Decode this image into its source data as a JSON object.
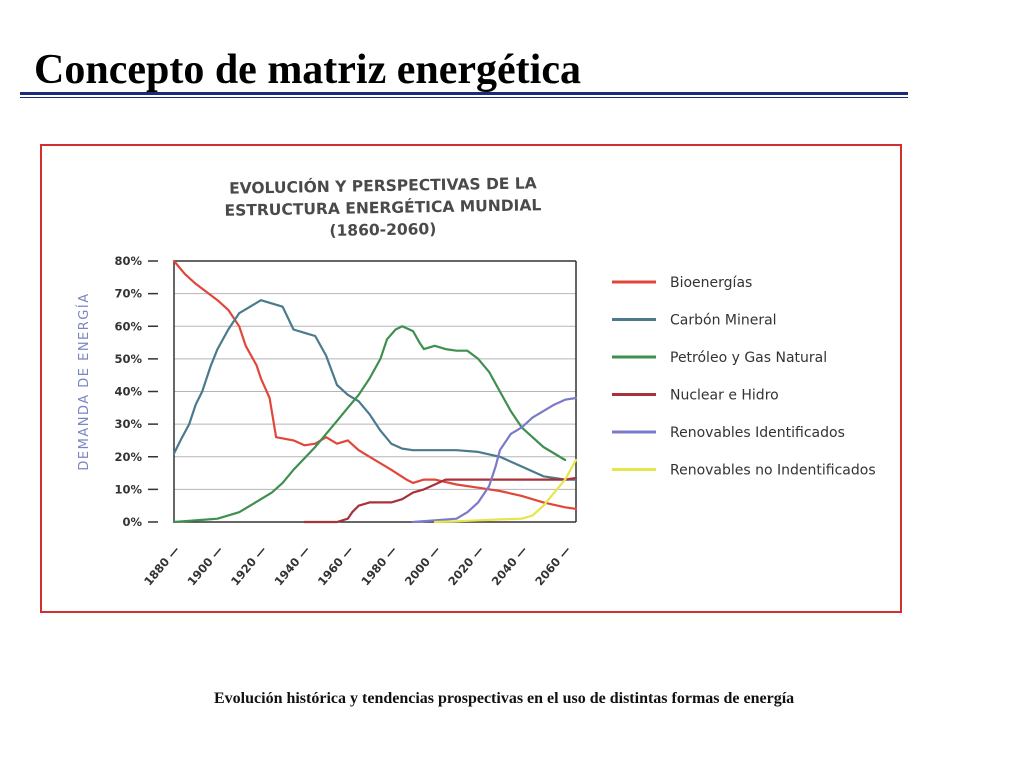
{
  "slide": {
    "title": "Concepto de matriz energética",
    "caption": "Evolución histórica y tendencias prospectivas en el uso de distintas formas de energía"
  },
  "chart_data": {
    "type": "line",
    "title": [
      "EVOLUCIÓN Y PERSPECTIVAS DE LA",
      "ESTRUCTURA ENERGÉTICA MUNDIAL",
      "(1860-2060)"
    ],
    "xlabel": "",
    "ylabel": "DEMANDA DE ENERGÍA",
    "xlim": [
      1880,
      2065
    ],
    "ylim": [
      0,
      80
    ],
    "x_ticks": [
      1880,
      1900,
      1920,
      1940,
      1960,
      1980,
      2000,
      2020,
      2040,
      2060
    ],
    "y_ticks": [
      0,
      10,
      20,
      30,
      40,
      50,
      60,
      70,
      80
    ],
    "y_tick_labels": [
      "0%",
      "10%",
      "20%",
      "30%",
      "40%",
      "50%",
      "60%",
      "70%",
      "80%"
    ],
    "grid": true,
    "legend_position": "right",
    "series": [
      {
        "name": "Bioenergías",
        "color": "#e0473a",
        "points": [
          [
            1880,
            80
          ],
          [
            1885,
            76
          ],
          [
            1890,
            73
          ],
          [
            1900,
            68
          ],
          [
            1905,
            65
          ],
          [
            1910,
            60
          ],
          [
            1913,
            54
          ],
          [
            1918,
            48
          ],
          [
            1920,
            44
          ],
          [
            1924,
            38
          ],
          [
            1927,
            26
          ],
          [
            1935,
            25
          ],
          [
            1940,
            23.5
          ],
          [
            1945,
            24
          ],
          [
            1950,
            26
          ],
          [
            1955,
            24
          ],
          [
            1960,
            25
          ],
          [
            1965,
            22
          ],
          [
            1970,
            20
          ],
          [
            1980,
            16
          ],
          [
            1987,
            13
          ],
          [
            1990,
            12
          ],
          [
            1995,
            13
          ],
          [
            2000,
            13
          ],
          [
            2010,
            11.5
          ],
          [
            2020,
            10.5
          ],
          [
            2030,
            9.5
          ],
          [
            2040,
            8
          ],
          [
            2050,
            6
          ],
          [
            2060,
            4.5
          ],
          [
            2065,
            4
          ]
        ]
      },
      {
        "name": "Carbón Mineral",
        "color": "#4a7a8c",
        "points": [
          [
            1880,
            21
          ],
          [
            1883,
            25
          ],
          [
            1887,
            30
          ],
          [
            1890,
            36
          ],
          [
            1893,
            40
          ],
          [
            1897,
            48
          ],
          [
            1900,
            53
          ],
          [
            1905,
            59
          ],
          [
            1910,
            64
          ],
          [
            1915,
            66
          ],
          [
            1920,
            68
          ],
          [
            1925,
            67
          ],
          [
            1930,
            66
          ],
          [
            1935,
            59
          ],
          [
            1940,
            58
          ],
          [
            1945,
            57
          ],
          [
            1950,
            51
          ],
          [
            1955,
            42
          ],
          [
            1960,
            39
          ],
          [
            1965,
            37
          ],
          [
            1970,
            33
          ],
          [
            1975,
            28
          ],
          [
            1980,
            24
          ],
          [
            1985,
            22.5
          ],
          [
            1990,
            22
          ],
          [
            2000,
            22
          ],
          [
            2010,
            22
          ],
          [
            2020,
            21.5
          ],
          [
            2030,
            20
          ],
          [
            2040,
            17
          ],
          [
            2050,
            14
          ],
          [
            2060,
            13
          ],
          [
            2065,
            13
          ]
        ]
      },
      {
        "name": "Petróleo y Gas Natural",
        "color": "#3f8f4f",
        "points": [
          [
            1880,
            0
          ],
          [
            1890,
            0.5
          ],
          [
            1900,
            1
          ],
          [
            1910,
            3
          ],
          [
            1920,
            7
          ],
          [
            1925,
            9
          ],
          [
            1930,
            12
          ],
          [
            1935,
            16
          ],
          [
            1940,
            19.5
          ],
          [
            1945,
            23
          ],
          [
            1950,
            27
          ],
          [
            1955,
            31
          ],
          [
            1960,
            35
          ],
          [
            1965,
            39
          ],
          [
            1970,
            44
          ],
          [
            1975,
            50
          ],
          [
            1978,
            56
          ],
          [
            1982,
            59
          ],
          [
            1985,
            60
          ],
          [
            1990,
            58.5
          ],
          [
            1993,
            55
          ],
          [
            1995,
            53
          ],
          [
            2000,
            54
          ],
          [
            2005,
            53
          ],
          [
            2010,
            52.5
          ],
          [
            2015,
            52.5
          ],
          [
            2020,
            50
          ],
          [
            2025,
            46
          ],
          [
            2030,
            40
          ],
          [
            2035,
            34
          ],
          [
            2040,
            29
          ],
          [
            2045,
            26
          ],
          [
            2050,
            23
          ],
          [
            2055,
            21
          ],
          [
            2060,
            19
          ]
        ]
      },
      {
        "name": "Nuclear e Hidro",
        "color": "#a8323a",
        "points": [
          [
            1940,
            0
          ],
          [
            1955,
            0
          ],
          [
            1960,
            1
          ],
          [
            1962,
            3
          ],
          [
            1965,
            5
          ],
          [
            1970,
            6
          ],
          [
            1980,
            6
          ],
          [
            1985,
            7
          ],
          [
            1990,
            9
          ],
          [
            1995,
            10
          ],
          [
            2000,
            11.5
          ],
          [
            2005,
            13
          ],
          [
            2010,
            13
          ],
          [
            2020,
            13
          ],
          [
            2030,
            13
          ],
          [
            2040,
            13
          ],
          [
            2050,
            13
          ],
          [
            2060,
            13
          ],
          [
            2065,
            13.5
          ]
        ]
      },
      {
        "name": "Renovables Identificados",
        "color": "#7a7ac8",
        "points": [
          [
            1990,
            0
          ],
          [
            2000,
            0.5
          ],
          [
            2010,
            1
          ],
          [
            2015,
            3
          ],
          [
            2020,
            6
          ],
          [
            2025,
            11
          ],
          [
            2028,
            17
          ],
          [
            2030,
            22
          ],
          [
            2035,
            27
          ],
          [
            2040,
            29
          ],
          [
            2045,
            32
          ],
          [
            2050,
            34
          ],
          [
            2055,
            36
          ],
          [
            2060,
            37.5
          ],
          [
            2065,
            38
          ]
        ]
      },
      {
        "name": "Renovables no Indentificados",
        "color": "#e6e64a",
        "points": [
          [
            2000,
            0
          ],
          [
            2010,
            0.2
          ],
          [
            2020,
            0.5
          ],
          [
            2030,
            0.8
          ],
          [
            2040,
            1
          ],
          [
            2045,
            2
          ],
          [
            2050,
            5
          ],
          [
            2055,
            9
          ],
          [
            2060,
            13
          ],
          [
            2065,
            19
          ]
        ]
      }
    ]
  }
}
